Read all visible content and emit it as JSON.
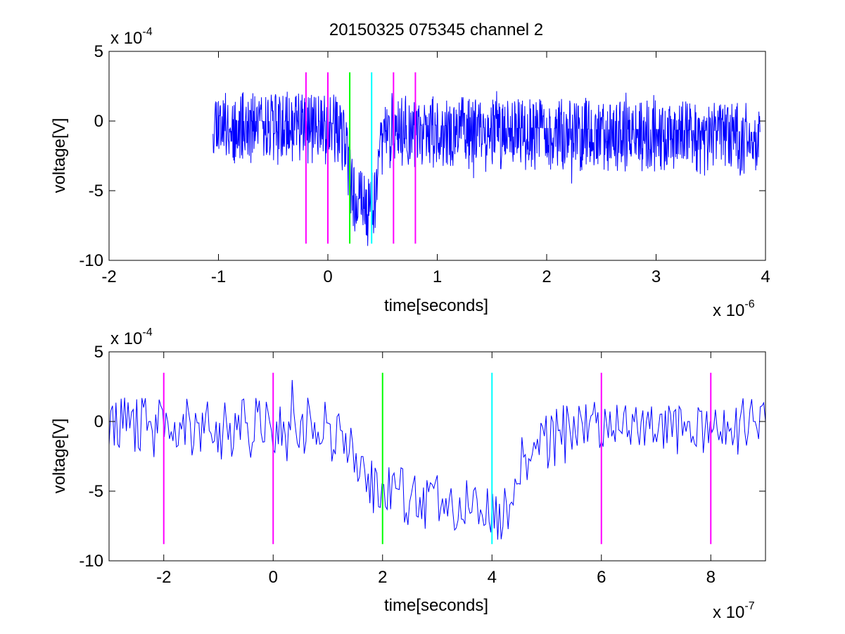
{
  "chart_data": [
    {
      "type": "line",
      "title": "20150325 075345 channel 2",
      "xlabel": "time[seconds]",
      "ylabel": "voltage[V]",
      "x_multiplier": "x 10",
      "x_exponent": "-6",
      "y_multiplier": "x 10",
      "y_exponent": "-4",
      "xlim": [
        -2,
        4
      ],
      "ylim": [
        -10,
        5
      ],
      "xticks": [
        -2,
        -1,
        0,
        1,
        2,
        3,
        4
      ],
      "xtick_labels": [
        "-2",
        "-1",
        "0",
        "1",
        "2",
        "3",
        "4"
      ],
      "yticks": [
        -10,
        -5,
        0,
        5
      ],
      "ytick_labels": [
        "-10",
        "-5",
        "0",
        "5"
      ],
      "grid": false,
      "series": [
        {
          "color": "#0000ff",
          "style": "noisy-trace",
          "x": [
            -1.05,
            -0.8,
            -0.6,
            -0.4,
            -0.2,
            0.0,
            0.1,
            0.16,
            0.2,
            0.24,
            0.28,
            0.32,
            0.36,
            0.4,
            0.44,
            0.48,
            0.6,
            1.0,
            1.5,
            2.0,
            2.5,
            3.0,
            3.5,
            3.95
          ],
          "y": [
            0.5,
            0.0,
            0.0,
            0.0,
            0.0,
            0.0,
            -0.4,
            -1.0,
            -3.6,
            -5.0,
            -5.6,
            -5.4,
            -5.8,
            -5.8,
            -4.8,
            -1.0,
            -0.3,
            -0.3,
            -0.5,
            -0.5,
            -0.6,
            -0.6,
            -0.7,
            -0.8
          ]
        }
      ],
      "markers": [
        {
          "x": -0.2,
          "y_range": [
            -8.8,
            3.5
          ],
          "color": "#ff00ff"
        },
        {
          "x": 0.0,
          "y_range": [
            -8.8,
            3.5
          ],
          "color": "#ff00ff"
        },
        {
          "x": 0.2,
          "y_range": [
            -8.8,
            3.5
          ],
          "color": "#00ff00"
        },
        {
          "x": 0.4,
          "y_range": [
            -8.8,
            3.5
          ],
          "color": "#00ffff"
        },
        {
          "x": 0.6,
          "y_range": [
            -8.8,
            3.5
          ],
          "color": "#ff00ff"
        },
        {
          "x": 0.8,
          "y_range": [
            -8.8,
            3.5
          ],
          "color": "#ff00ff"
        }
      ]
    },
    {
      "type": "line",
      "title": "",
      "xlabel": "time[seconds]",
      "ylabel": "voltage[V]",
      "x_multiplier": "x 10",
      "x_exponent": "-7",
      "y_multiplier": "x 10",
      "y_exponent": "-4",
      "xlim": [
        -3,
        9
      ],
      "ylim": [
        -10,
        5
      ],
      "xticks": [
        -2,
        0,
        2,
        4,
        6,
        8
      ],
      "xtick_labels": [
        "-2",
        "0",
        "2",
        "4",
        "6",
        "8"
      ],
      "yticks": [
        -10,
        -5,
        0,
        5
      ],
      "ytick_labels": [
        "-10",
        "-5",
        "0",
        "5"
      ],
      "grid": false,
      "series": [
        {
          "color": "#0000ff",
          "style": "noisy-trace",
          "x": [
            -3.0,
            -2.5,
            -2.0,
            -1.5,
            -1.0,
            -0.5,
            0.0,
            0.5,
            1.0,
            1.4,
            1.6,
            1.8,
            2.0,
            2.4,
            2.8,
            3.2,
            3.6,
            4.0,
            4.3,
            4.5,
            4.8,
            5.5,
            6.0,
            7.0,
            8.0,
            8.5,
            9.0
          ],
          "y": [
            0.0,
            0.0,
            0.0,
            -0.1,
            -0.1,
            -0.1,
            0.0,
            0.0,
            -0.1,
            -1.0,
            -3.2,
            -4.0,
            -4.5,
            -5.0,
            -5.6,
            -5.5,
            -5.4,
            -6.0,
            -5.8,
            -3.0,
            -1.3,
            -0.2,
            -0.1,
            0.0,
            0.0,
            0.0,
            0.0
          ]
        }
      ],
      "markers": [
        {
          "x": -2.0,
          "y_range": [
            -8.8,
            3.5
          ],
          "color": "#ff00ff"
        },
        {
          "x": 0.0,
          "y_range": [
            -8.8,
            3.5
          ],
          "color": "#ff00ff"
        },
        {
          "x": 2.0,
          "y_range": [
            -8.8,
            3.5
          ],
          "color": "#00ff00"
        },
        {
          "x": 4.0,
          "y_range": [
            -8.8,
            3.5
          ],
          "color": "#00ffff"
        },
        {
          "x": 6.0,
          "y_range": [
            -8.8,
            3.5
          ],
          "color": "#ff00ff"
        },
        {
          "x": 8.0,
          "y_range": [
            -8.8,
            3.5
          ],
          "color": "#ff00ff"
        }
      ]
    }
  ]
}
